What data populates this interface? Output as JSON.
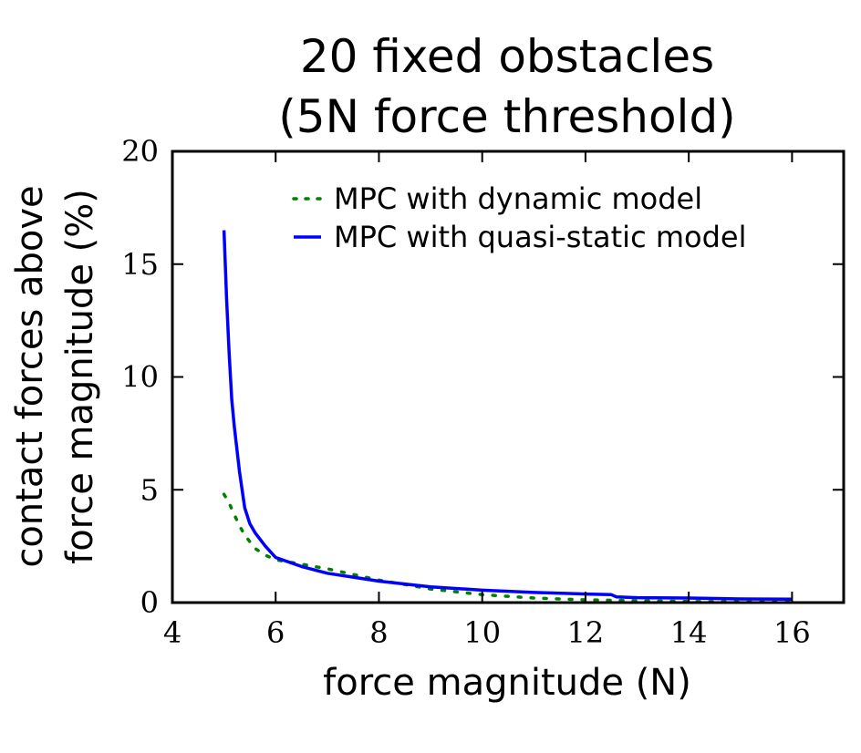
{
  "chart_data": {
    "type": "line",
    "title_lines": [
      "20 fixed obstacles",
      "(5N force threshold)"
    ],
    "xlabel": "force magnitude (N)",
    "ylabel_lines": [
      "contact forces above",
      "force magnitude (%)"
    ],
    "xlim": [
      4,
      17
    ],
    "ylim": [
      0,
      20
    ],
    "xticks": [
      4,
      6,
      8,
      10,
      12,
      14,
      16
    ],
    "yticks": [
      0,
      5,
      10,
      15,
      20
    ],
    "grid": false,
    "legend_position": "top-right",
    "series": [
      {
        "name": "MPC with dynamic model",
        "color": "#008000",
        "style": "dotted",
        "x": [
          5.0,
          5.1,
          5.2,
          5.3,
          5.4,
          5.5,
          5.6,
          5.8,
          6.0,
          6.5,
          7.0,
          8.0,
          9.0,
          10.0,
          11.0,
          12.0,
          13.0,
          14.0,
          15.0,
          16.0
        ],
        "y": [
          4.8,
          4.4,
          3.9,
          3.4,
          3.0,
          2.7,
          2.4,
          2.1,
          1.9,
          1.7,
          1.5,
          1.0,
          0.6,
          0.35,
          0.2,
          0.12,
          0.08,
          0.05,
          0.03,
          0.02
        ]
      },
      {
        "name": "MPC with quasi-static model",
        "color": "#0000ff",
        "style": "solid",
        "x": [
          5.0,
          5.05,
          5.1,
          5.15,
          5.2,
          5.3,
          5.4,
          5.5,
          5.6,
          5.8,
          6.0,
          6.5,
          7.0,
          8.0,
          9.0,
          10.0,
          11.0,
          12.0,
          12.5,
          12.6,
          13.0,
          14.0,
          15.0,
          16.0
        ],
        "y": [
          16.5,
          13.5,
          11.0,
          9.0,
          7.8,
          5.8,
          4.2,
          3.5,
          3.1,
          2.5,
          2.0,
          1.6,
          1.3,
          0.95,
          0.7,
          0.55,
          0.45,
          0.38,
          0.35,
          0.25,
          0.22,
          0.2,
          0.16,
          0.15
        ]
      }
    ]
  }
}
